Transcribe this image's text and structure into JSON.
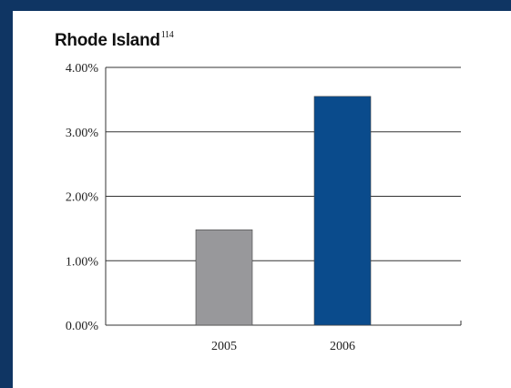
{
  "chart_data": {
    "type": "bar",
    "title": "Rhode Island",
    "title_superscript": "114",
    "categories": [
      "2005",
      "2006"
    ],
    "values": [
      1.48,
      3.55
    ],
    "colors": [
      "#98989b",
      "#0a4b8c"
    ],
    "xlabel": "",
    "ylabel": "",
    "ylim": [
      0,
      4
    ],
    "yticks": [
      0,
      1,
      2,
      3,
      4
    ],
    "ytick_labels": [
      "0.00%",
      "1.00%",
      "2.00%",
      "3.00%",
      "4.00%"
    ],
    "grid": true,
    "legend": "none"
  },
  "colors": {
    "frame": "#0f3563",
    "panel": "#ffffff",
    "gridline": "#333333"
  }
}
